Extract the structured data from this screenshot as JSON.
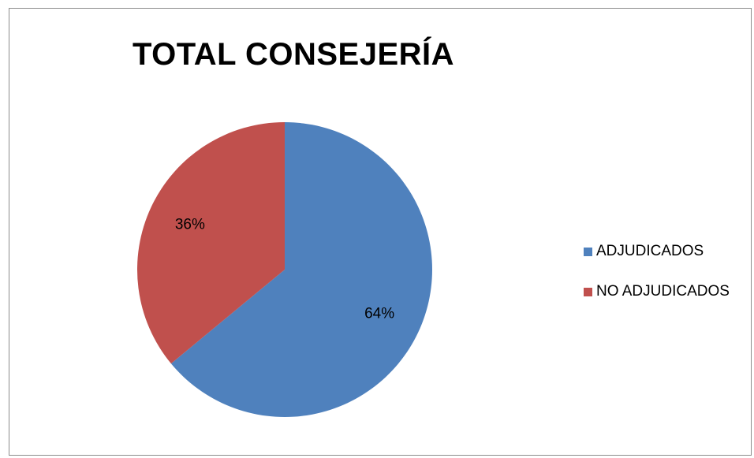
{
  "chart_data": {
    "type": "pie",
    "title": "TOTAL CONSEJERÍA",
    "categories": [
      "ADJUDICADOS",
      "NO ADJUDICADOS"
    ],
    "values": [
      64,
      36
    ],
    "labels": [
      "64%",
      "36%"
    ],
    "colors": [
      "#4f81bd",
      "#c0504d"
    ],
    "legend_position": "right"
  }
}
